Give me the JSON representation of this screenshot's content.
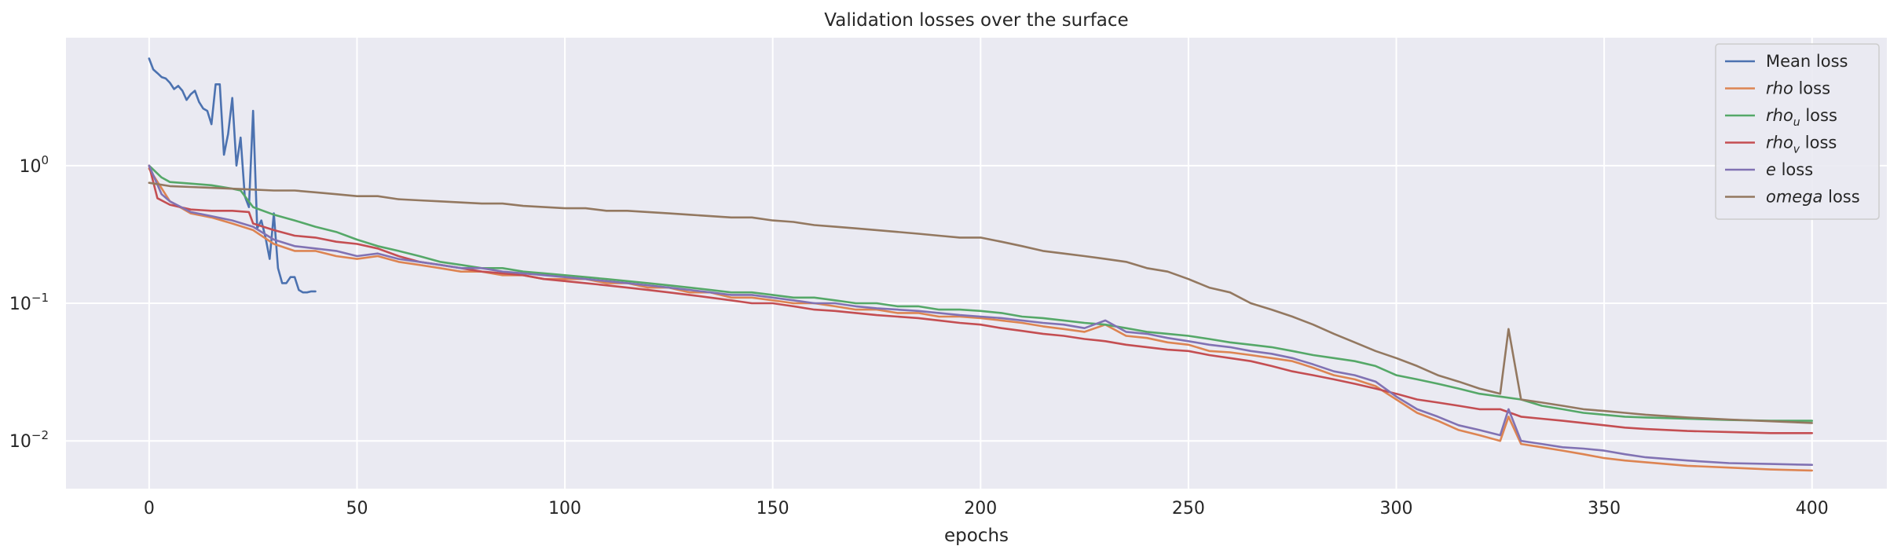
{
  "chart_data": {
    "type": "line",
    "title": "Validation losses over the surface",
    "xlabel": "epochs",
    "ylabel": "",
    "yscale": "log",
    "xlim": [
      -20,
      418
    ],
    "ylim": [
      0.0045,
      8.5
    ],
    "xticks": [
      0,
      50,
      100,
      150,
      200,
      250,
      300,
      350,
      400
    ],
    "xtick_labels": [
      "0",
      "50",
      "100",
      "150",
      "200",
      "250",
      "300",
      "350",
      "400"
    ],
    "yticks": [
      0.01,
      0.1,
      1
    ],
    "ytick_labels": [
      {
        "base": "10",
        "exp": "−2"
      },
      {
        "base": "10",
        "exp": "−1"
      },
      {
        "base": "10",
        "exp": "0"
      }
    ],
    "grid": true,
    "legend_position": "top-right",
    "series": [
      {
        "name": "Mean loss",
        "legend": {
          "main": "Mean loss",
          "italic": "",
          "sub": "",
          "rest": ""
        },
        "color": "#4c72b0",
        "x": [
          0,
          1,
          2,
          3,
          4,
          5,
          6,
          7,
          8,
          9,
          10,
          11,
          12,
          13,
          14,
          15,
          16,
          17,
          18,
          19,
          20,
          21,
          22,
          23,
          24,
          25,
          26,
          27,
          28,
          29,
          30,
          31,
          32,
          33,
          34,
          35,
          36,
          37,
          38,
          39,
          40
        ],
        "y": [
          6.0,
          5.0,
          4.7,
          4.4,
          4.3,
          4.0,
          3.6,
          3.8,
          3.5,
          3.0,
          3.3,
          3.5,
          2.9,
          2.6,
          2.5,
          2.0,
          3.9,
          3.9,
          1.2,
          1.7,
          3.1,
          1.0,
          1.6,
          0.6,
          0.5,
          2.5,
          0.35,
          0.4,
          0.3,
          0.21,
          0.45,
          0.18,
          0.14,
          0.14,
          0.155,
          0.155,
          0.125,
          0.12,
          0.12,
          0.122,
          0.122
        ]
      },
      {
        "name": "rho loss",
        "legend": {
          "main": "",
          "italic": "rho",
          "sub": "",
          "rest": " loss"
        },
        "color": "#dd8452",
        "x": [
          0,
          5,
          10,
          15,
          20,
          25,
          30,
          35,
          40,
          45,
          50,
          55,
          60,
          65,
          70,
          75,
          80,
          85,
          90,
          95,
          100,
          105,
          110,
          115,
          120,
          125,
          130,
          135,
          140,
          145,
          150,
          155,
          160,
          165,
          170,
          175,
          180,
          185,
          190,
          195,
          200,
          205,
          210,
          215,
          220,
          225,
          230,
          235,
          240,
          245,
          250,
          255,
          260,
          265,
          270,
          275,
          280,
          285,
          290,
          295,
          300,
          305,
          310,
          315,
          320,
          325,
          327,
          330,
          335,
          340,
          345,
          350,
          355,
          360,
          370,
          380,
          390,
          400
        ],
        "y": [
          0.95,
          0.55,
          0.45,
          0.42,
          0.38,
          0.34,
          0.27,
          0.24,
          0.24,
          0.22,
          0.21,
          0.22,
          0.2,
          0.19,
          0.18,
          0.17,
          0.17,
          0.16,
          0.16,
          0.15,
          0.15,
          0.15,
          0.14,
          0.14,
          0.13,
          0.13,
          0.12,
          0.12,
          0.11,
          0.11,
          0.105,
          0.1,
          0.1,
          0.095,
          0.09,
          0.09,
          0.085,
          0.085,
          0.08,
          0.08,
          0.078,
          0.075,
          0.072,
          0.068,
          0.065,
          0.062,
          0.07,
          0.058,
          0.056,
          0.052,
          0.05,
          0.045,
          0.044,
          0.042,
          0.04,
          0.038,
          0.034,
          0.03,
          0.028,
          0.025,
          0.02,
          0.016,
          0.014,
          0.012,
          0.011,
          0.01,
          0.015,
          0.0095,
          0.009,
          0.0085,
          0.008,
          0.0075,
          0.0072,
          0.007,
          0.0066,
          0.0064,
          0.0062,
          0.0061
        ]
      },
      {
        "name": "rho_u loss",
        "legend": {
          "main": "",
          "italic": "rho",
          "sub": "u",
          "rest": " loss"
        },
        "color": "#55a868",
        "x": [
          0,
          3,
          5,
          10,
          15,
          20,
          22,
          25,
          30,
          35,
          40,
          45,
          50,
          55,
          60,
          65,
          70,
          75,
          80,
          85,
          90,
          95,
          100,
          105,
          110,
          115,
          120,
          125,
          130,
          135,
          140,
          145,
          150,
          155,
          160,
          165,
          170,
          175,
          180,
          185,
          190,
          195,
          200,
          205,
          210,
          215,
          220,
          225,
          230,
          235,
          240,
          245,
          250,
          255,
          260,
          265,
          270,
          275,
          280,
          285,
          290,
          295,
          300,
          305,
          310,
          315,
          320,
          325,
          330,
          335,
          340,
          345,
          350,
          355,
          360,
          370,
          380,
          390,
          400
        ],
        "y": [
          1.0,
          0.82,
          0.76,
          0.74,
          0.72,
          0.68,
          0.66,
          0.5,
          0.44,
          0.4,
          0.36,
          0.33,
          0.29,
          0.26,
          0.24,
          0.22,
          0.2,
          0.19,
          0.18,
          0.18,
          0.17,
          0.165,
          0.16,
          0.155,
          0.15,
          0.145,
          0.14,
          0.135,
          0.13,
          0.125,
          0.12,
          0.12,
          0.115,
          0.11,
          0.11,
          0.105,
          0.1,
          0.1,
          0.095,
          0.095,
          0.09,
          0.09,
          0.088,
          0.085,
          0.08,
          0.078,
          0.075,
          0.072,
          0.07,
          0.066,
          0.062,
          0.06,
          0.058,
          0.055,
          0.052,
          0.05,
          0.048,
          0.045,
          0.042,
          0.04,
          0.038,
          0.035,
          0.03,
          0.028,
          0.026,
          0.024,
          0.022,
          0.021,
          0.02,
          0.018,
          0.017,
          0.016,
          0.0155,
          0.015,
          0.0148,
          0.0145,
          0.0142,
          0.014,
          0.014
        ]
      },
      {
        "name": "rho_v loss",
        "legend": {
          "main": "",
          "italic": "rho",
          "sub": "v",
          "rest": " loss"
        },
        "color": "#c44e52",
        "x": [
          0,
          2,
          5,
          10,
          15,
          20,
          24,
          25,
          30,
          35,
          40,
          45,
          50,
          55,
          60,
          65,
          70,
          75,
          80,
          85,
          90,
          95,
          100,
          105,
          110,
          115,
          120,
          125,
          130,
          135,
          140,
          145,
          150,
          155,
          160,
          165,
          170,
          175,
          180,
          185,
          190,
          195,
          200,
          205,
          210,
          215,
          220,
          225,
          230,
          235,
          240,
          245,
          250,
          255,
          260,
          265,
          270,
          275,
          280,
          285,
          290,
          295,
          300,
          305,
          310,
          315,
          320,
          325,
          330,
          335,
          340,
          345,
          350,
          355,
          360,
          370,
          380,
          390,
          400
        ],
        "y": [
          1.0,
          0.58,
          0.52,
          0.48,
          0.47,
          0.47,
          0.46,
          0.38,
          0.34,
          0.31,
          0.3,
          0.28,
          0.27,
          0.25,
          0.22,
          0.2,
          0.19,
          0.18,
          0.17,
          0.165,
          0.16,
          0.15,
          0.145,
          0.14,
          0.135,
          0.13,
          0.125,
          0.12,
          0.115,
          0.11,
          0.105,
          0.1,
          0.1,
          0.095,
          0.09,
          0.088,
          0.085,
          0.082,
          0.08,
          0.078,
          0.075,
          0.072,
          0.07,
          0.066,
          0.063,
          0.06,
          0.058,
          0.055,
          0.053,
          0.05,
          0.048,
          0.046,
          0.045,
          0.042,
          0.04,
          0.038,
          0.035,
          0.032,
          0.03,
          0.028,
          0.026,
          0.024,
          0.022,
          0.02,
          0.019,
          0.018,
          0.017,
          0.017,
          0.015,
          0.0145,
          0.014,
          0.0135,
          0.013,
          0.0125,
          0.0122,
          0.0118,
          0.0116,
          0.0114,
          0.0114
        ]
      },
      {
        "name": "e loss",
        "legend": {
          "main": "",
          "italic": "e",
          "sub": "",
          "rest": " loss"
        },
        "color": "#8172b3",
        "x": [
          0,
          3,
          5,
          10,
          15,
          20,
          25,
          30,
          35,
          40,
          45,
          50,
          55,
          60,
          65,
          70,
          75,
          80,
          85,
          90,
          95,
          100,
          105,
          110,
          115,
          120,
          125,
          130,
          135,
          140,
          145,
          150,
          155,
          160,
          165,
          170,
          175,
          180,
          185,
          190,
          195,
          200,
          205,
          210,
          215,
          220,
          225,
          230,
          235,
          240,
          245,
          250,
          255,
          260,
          265,
          270,
          275,
          280,
          285,
          290,
          295,
          300,
          305,
          310,
          315,
          320,
          325,
          327,
          330,
          335,
          340,
          345,
          350,
          355,
          360,
          370,
          380,
          390,
          400
        ],
        "y": [
          1.0,
          0.62,
          0.55,
          0.46,
          0.43,
          0.4,
          0.36,
          0.29,
          0.26,
          0.25,
          0.24,
          0.22,
          0.23,
          0.21,
          0.2,
          0.19,
          0.18,
          0.18,
          0.17,
          0.165,
          0.16,
          0.155,
          0.15,
          0.145,
          0.14,
          0.135,
          0.13,
          0.125,
          0.12,
          0.115,
          0.115,
          0.11,
          0.105,
          0.1,
          0.1,
          0.095,
          0.092,
          0.09,
          0.088,
          0.085,
          0.082,
          0.08,
          0.078,
          0.075,
          0.072,
          0.07,
          0.066,
          0.075,
          0.062,
          0.06,
          0.056,
          0.053,
          0.05,
          0.048,
          0.045,
          0.043,
          0.04,
          0.036,
          0.032,
          0.03,
          0.027,
          0.021,
          0.017,
          0.015,
          0.013,
          0.012,
          0.011,
          0.017,
          0.01,
          0.0095,
          0.009,
          0.0088,
          0.0085,
          0.008,
          0.0076,
          0.0072,
          0.0069,
          0.0068,
          0.0067
        ]
      },
      {
        "name": "omega loss",
        "legend": {
          "main": "",
          "italic": "omega",
          "sub": "",
          "rest": " loss"
        },
        "color": "#937860",
        "x": [
          0,
          5,
          10,
          15,
          20,
          25,
          30,
          35,
          40,
          45,
          50,
          55,
          60,
          65,
          70,
          75,
          80,
          85,
          90,
          95,
          100,
          105,
          110,
          115,
          120,
          125,
          130,
          135,
          140,
          145,
          150,
          155,
          160,
          165,
          170,
          175,
          180,
          185,
          190,
          195,
          200,
          205,
          210,
          215,
          220,
          225,
          230,
          235,
          240,
          245,
          250,
          255,
          260,
          265,
          270,
          275,
          280,
          285,
          290,
          295,
          300,
          305,
          310,
          315,
          320,
          325,
          327,
          330,
          335,
          340,
          345,
          350,
          355,
          360,
          370,
          380,
          390,
          400
        ],
        "y": [
          0.75,
          0.71,
          0.7,
          0.69,
          0.68,
          0.67,
          0.66,
          0.66,
          0.64,
          0.62,
          0.6,
          0.6,
          0.57,
          0.56,
          0.55,
          0.54,
          0.53,
          0.53,
          0.51,
          0.5,
          0.49,
          0.49,
          0.47,
          0.47,
          0.46,
          0.45,
          0.44,
          0.43,
          0.42,
          0.42,
          0.4,
          0.39,
          0.37,
          0.36,
          0.35,
          0.34,
          0.33,
          0.32,
          0.31,
          0.3,
          0.3,
          0.28,
          0.26,
          0.24,
          0.23,
          0.22,
          0.21,
          0.2,
          0.18,
          0.17,
          0.15,
          0.13,
          0.12,
          0.1,
          0.09,
          0.08,
          0.07,
          0.06,
          0.052,
          0.045,
          0.04,
          0.035,
          0.03,
          0.027,
          0.024,
          0.022,
          0.065,
          0.02,
          0.019,
          0.018,
          0.017,
          0.0165,
          0.016,
          0.0155,
          0.0148,
          0.0143,
          0.0139,
          0.0135
        ]
      }
    ]
  }
}
